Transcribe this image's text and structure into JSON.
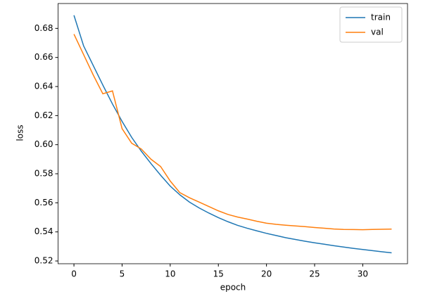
{
  "chart_data": {
    "type": "line",
    "x_label": "epoch",
    "y_label": "loss",
    "x": [
      0,
      1,
      2,
      3,
      4,
      5,
      6,
      7,
      8,
      9,
      10,
      11,
      12,
      13,
      14,
      15,
      16,
      17,
      18,
      19,
      20,
      21,
      22,
      23,
      24,
      25,
      26,
      27,
      28,
      29,
      30,
      31,
      32,
      33
    ],
    "series": [
      {
        "name": "train",
        "color": "#1f77b4",
        "values": [
          0.689,
          0.668,
          0.6545,
          0.641,
          0.628,
          0.616,
          0.605,
          0.5955,
          0.587,
          0.579,
          0.5715,
          0.5655,
          0.5605,
          0.5565,
          0.553,
          0.5498,
          0.547,
          0.5445,
          0.5425,
          0.5407,
          0.539,
          0.5375,
          0.536,
          0.5348,
          0.5336,
          0.5325,
          0.5315,
          0.5305,
          0.5296,
          0.5287,
          0.5279,
          0.5271,
          0.5263,
          0.5256
        ]
      },
      {
        "name": "val",
        "color": "#ff7f0e",
        "values": [
          0.676,
          0.662,
          0.648,
          0.635,
          0.637,
          0.611,
          0.601,
          0.597,
          0.59,
          0.585,
          0.575,
          0.567,
          0.5635,
          0.5605,
          0.5575,
          0.5545,
          0.552,
          0.5502,
          0.5488,
          0.5473,
          0.546,
          0.5452,
          0.5446,
          0.5441,
          0.5436,
          0.543,
          0.5425,
          0.542,
          0.5417,
          0.5416,
          0.5415,
          0.5417,
          0.5418,
          0.5419
        ]
      }
    ],
    "xlim": [
      -1.65,
      34.65
    ],
    "xticks": [
      0,
      5,
      10,
      15,
      20,
      25,
      30
    ],
    "ylim": [
      0.5181,
      0.6971
    ],
    "yticks": [
      0.52,
      0.54,
      0.56,
      0.58,
      {
        "value": 0.6,
        "label": "0.60"
      },
      0.62,
      0.64,
      0.66,
      0.68
    ],
    "legend": "upper right"
  }
}
